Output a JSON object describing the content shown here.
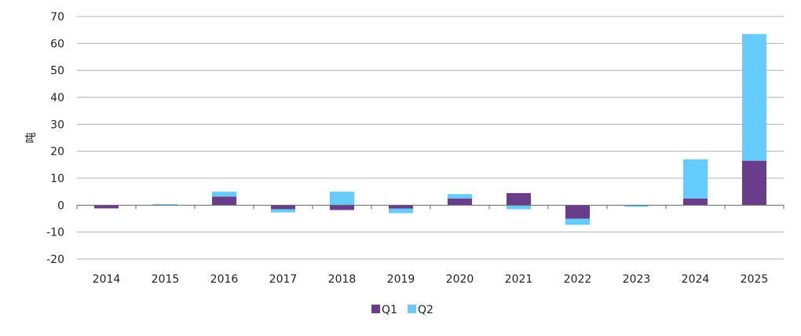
{
  "chart_data": {
    "type": "bar",
    "stacked": true,
    "categories": [
      "2014",
      "2015",
      "2016",
      "2017",
      "2018",
      "2019",
      "2020",
      "2021",
      "2022",
      "2023",
      "2024",
      "2025"
    ],
    "series": [
      {
        "name": "Q1",
        "color": "#6a3d8a",
        "values": [
          -1.2,
          0,
          3.2,
          -1.5,
          -1.8,
          -1.3,
          2.5,
          4.5,
          -5.0,
          0,
          2.5,
          16.5
        ]
      },
      {
        "name": "Q2",
        "color": "#66ccff",
        "values": [
          0,
          0.4,
          1.8,
          -1.2,
          5.0,
          -1.7,
          1.6,
          -1.5,
          -2.3,
          -0.6,
          14.5,
          47.0
        ]
      }
    ],
    "ylabel": "吨",
    "ylim": [
      -20,
      70
    ],
    "yticks": [
      "-20",
      "-10",
      "0",
      "10",
      "20",
      "30",
      "40",
      "50",
      "60",
      "70"
    ],
    "grid": true,
    "legend": "bottom-center"
  },
  "legend_items": [
    {
      "label": "Q1",
      "color": "#6a3d8a"
    },
    {
      "label": "Q2",
      "color": "#66ccff"
    }
  ]
}
